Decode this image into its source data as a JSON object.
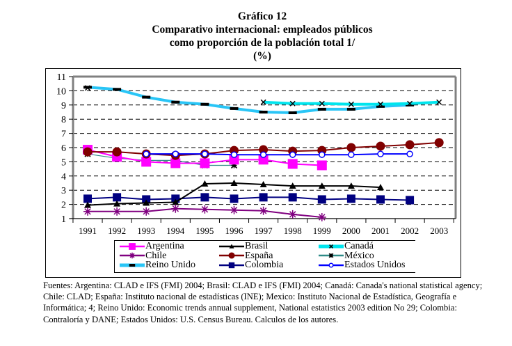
{
  "header": {
    "figure_number": "Gráfico 12",
    "title_line1": "Comparativo internacional: empleados públicos",
    "title_line2": "como proporción de la población total  1/",
    "unit": "(%)"
  },
  "chart_data": {
    "type": "line",
    "title": "Comparativo internacional: empleados públicos como proporción de la población total 1/",
    "subtitle": "(%)",
    "xlabel": "",
    "ylabel": "",
    "x": [
      "1991",
      "1992",
      "1993",
      "1994",
      "1995",
      "1996",
      "1997",
      "1998",
      "1999",
      "2000",
      "2001",
      "2002",
      "2003"
    ],
    "ylim": [
      1,
      11
    ],
    "yticks": [
      1,
      2,
      3,
      4,
      5,
      6,
      7,
      8,
      9,
      10,
      11
    ],
    "grid": "horizontal-dashed",
    "legend_position": "bottom",
    "series": [
      {
        "name": "Argentina",
        "color": "#ff00ff",
        "marker": "square",
        "values": [
          5.85,
          5.35,
          5.0,
          4.9,
          4.9,
          5.15,
          5.15,
          4.85,
          4.75,
          null,
          null,
          null,
          null
        ]
      },
      {
        "name": "Brasil",
        "color": "#000000",
        "marker": "triangle",
        "values": [
          1.95,
          2.05,
          2.1,
          2.15,
          3.45,
          3.5,
          3.4,
          3.3,
          3.3,
          3.3,
          3.2,
          null,
          null
        ]
      },
      {
        "name": "Canadá",
        "color": "#00e5ee",
        "marker": "x",
        "values": [
          10.2,
          null,
          null,
          null,
          null,
          null,
          9.2,
          9.1,
          9.1,
          9.05,
          9.05,
          9.1,
          9.2
        ]
      },
      {
        "name": "Chile",
        "color": "#800080",
        "marker": "asterisk",
        "values": [
          1.5,
          1.5,
          1.5,
          1.7,
          1.65,
          1.6,
          1.55,
          1.3,
          1.1,
          null,
          null,
          null,
          null
        ]
      },
      {
        "name": "España",
        "color": "#800000",
        "marker": "circle",
        "values": [
          5.7,
          5.7,
          5.55,
          5.45,
          5.55,
          5.8,
          5.85,
          5.75,
          5.8,
          6.0,
          6.1,
          6.2,
          6.35
        ]
      },
      {
        "name": "México",
        "color": "#2e8b87",
        "marker": "star",
        "values": [
          5.55,
          5.25,
          5.1,
          5.1,
          4.75,
          4.75,
          null,
          null,
          null,
          null,
          null,
          null,
          null
        ]
      },
      {
        "name": "Reino Unido",
        "color": "#29c5f6",
        "marker": "dash",
        "values": [
          10.25,
          10.1,
          9.55,
          9.2,
          9.05,
          8.75,
          8.5,
          8.45,
          8.7,
          8.7,
          8.9,
          9.0,
          null
        ]
      },
      {
        "name": "Colombia",
        "color": "#000080",
        "marker": "square",
        "values": [
          2.4,
          2.5,
          2.35,
          2.4,
          2.5,
          2.4,
          2.5,
          2.5,
          2.35,
          2.4,
          2.35,
          2.3,
          null
        ]
      },
      {
        "name": "Estados Unidos",
        "color": "#0000ff",
        "marker": "open-circle",
        "values": [
          null,
          null,
          5.55,
          5.55,
          5.55,
          5.5,
          5.5,
          5.5,
          5.5,
          5.5,
          5.55,
          5.55,
          null
        ]
      }
    ]
  },
  "sources": {
    "text": "Fuentes: Argentina: CLAD e IFS (FMI) 2004; Brasil: CLAD e IFS (FMI) 2004; Canadá: Canada's national statistical agency; Chile: CLAD; España: Instituto nacional de estadísticas (INE); Mexico: Instituto Nacional de Estadística, Geografía e Informática; 4; Reino Unido: Economic trends annual supplement, National estatistics 2003 edition No 29; Colombia: Contraloría y DANE; Estados Unidos: U.S. Census Bureau. Calculos de los autores."
  }
}
